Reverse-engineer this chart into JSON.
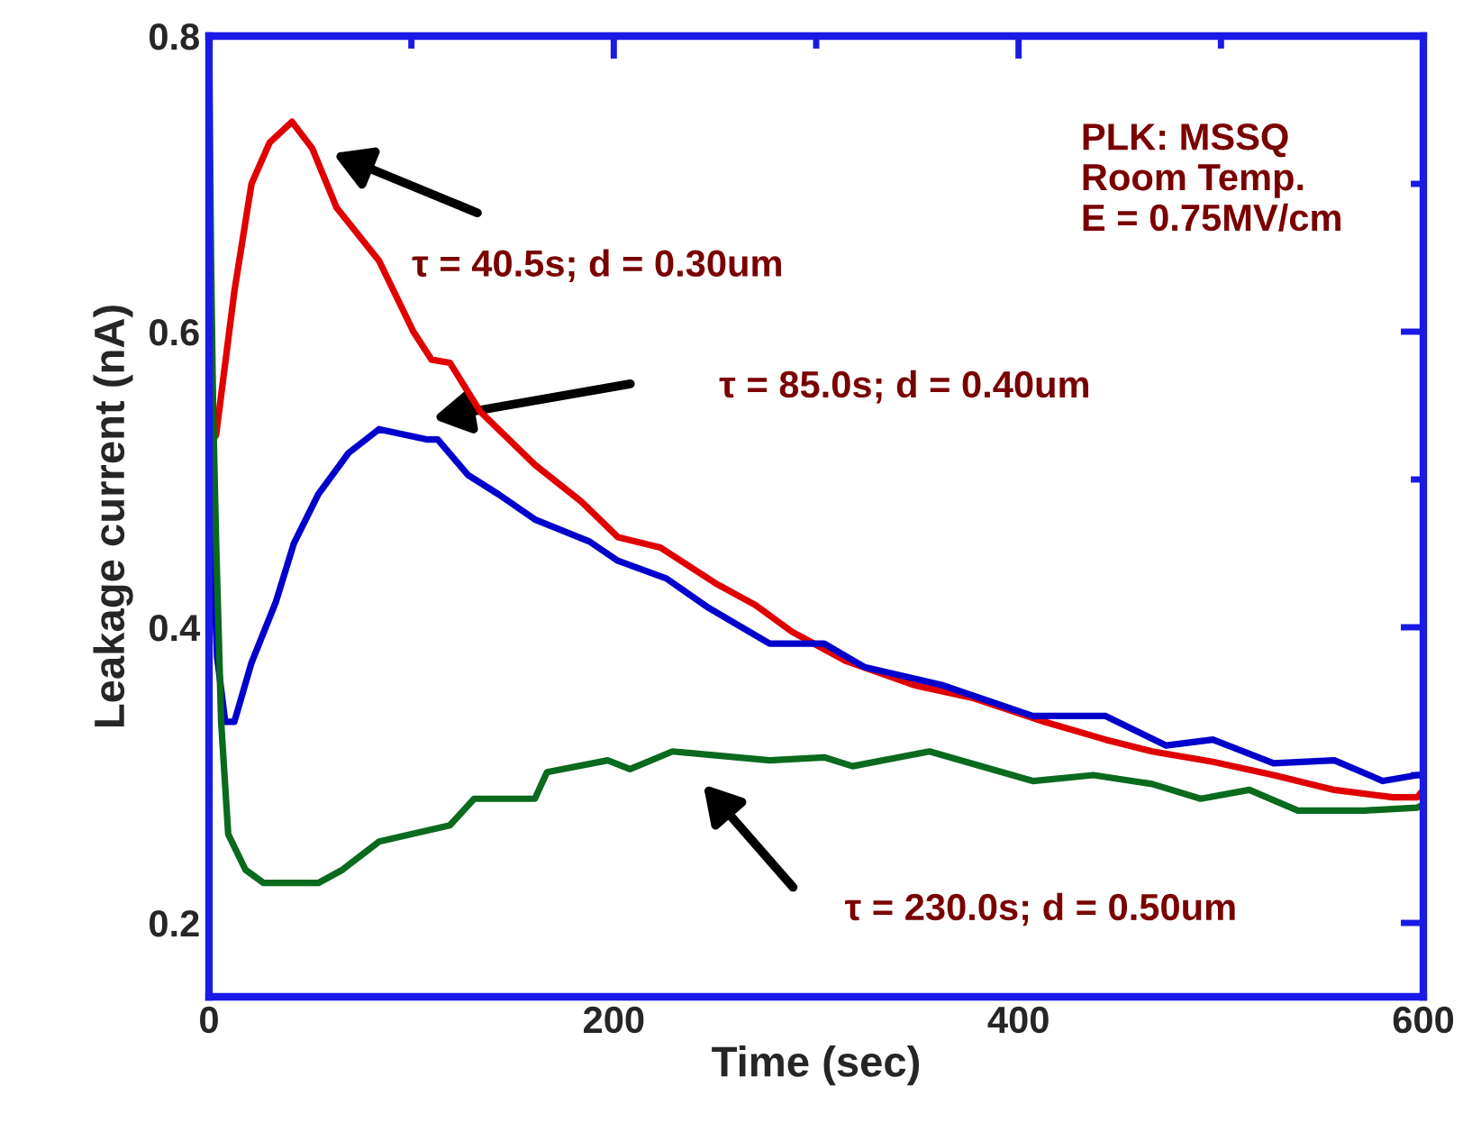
{
  "chart_data": {
    "type": "line",
    "xlabel": "Time (sec)",
    "ylabel": "Leakage current (nA)",
    "xlim": [
      0,
      600
    ],
    "ylim": [
      0.15,
      0.8
    ],
    "xticks": [
      0,
      {
        "value": 100,
        "label": null
      },
      200,
      {
        "value": 300,
        "label": null
      },
      400,
      {
        "value": 500,
        "label": null
      },
      600
    ],
    "yticks": [
      0.2,
      {
        "value": 0.3,
        "label": null
      },
      0.4,
      {
        "value": 0.5,
        "label": null
      },
      0.6,
      {
        "value": 0.7,
        "label": null
      },
      0.8
    ],
    "grid": false,
    "legend": false,
    "marker": "none",
    "line_style": "solid",
    "series": [
      {
        "color": "#e00000",
        "x": [
          1,
          3.5,
          12.5,
          21,
          30,
          41,
          51,
          63,
          84,
          101,
          110,
          119,
          134,
          161,
          184,
          202,
          223,
          250,
          270,
          288,
          315,
          348,
          378,
          413,
          443,
          466,
          496,
          526,
          556,
          585,
          597,
          600
        ],
        "values": [
          0.525,
          0.53,
          0.627,
          0.7,
          0.728,
          0.742,
          0.724,
          0.684,
          0.648,
          0.6,
          0.581,
          0.579,
          0.546,
          0.51,
          0.485,
          0.461,
          0.454,
          0.43,
          0.415,
          0.397,
          0.377,
          0.361,
          0.352,
          0.336,
          0.324,
          0.316,
          0.309,
          0.3,
          0.29,
          0.285,
          0.285,
          0.29
        ]
      },
      {
        "color": "#0000cc",
        "x": [
          0.5,
          4,
          8,
          12.5,
          21,
          33,
          42,
          54,
          69,
          84,
          108,
          113,
          128,
          143,
          161,
          188,
          202,
          226,
          247,
          277,
          288,
          304,
          324,
          362,
          407,
          443,
          473,
          496,
          526,
          556,
          580,
          597,
          600
        ],
        "values": [
          0.5,
          0.38,
          0.336,
          0.336,
          0.376,
          0.417,
          0.457,
          0.49,
          0.518,
          0.534,
          0.527,
          0.527,
          0.503,
          0.49,
          0.473,
          0.458,
          0.445,
          0.433,
          0.413,
          0.389,
          0.389,
          0.389,
          0.373,
          0.361,
          0.34,
          0.34,
          0.32,
          0.324,
          0.308,
          0.31,
          0.296,
          0.3,
          0.3
        ]
      },
      {
        "color": "#0a6a1e",
        "x": [
          0,
          1,
          2,
          3.5,
          6,
          9.5,
          18,
          27,
          54,
          66,
          84,
          119,
          131,
          161,
          167,
          197,
          208,
          229,
          277,
          304,
          318,
          356,
          407,
          437,
          466,
          490,
          514,
          538,
          571,
          597,
          600
        ],
        "values": [
          0.8,
          0.65,
          0.55,
          0.458,
          0.336,
          0.26,
          0.236,
          0.227,
          0.227,
          0.236,
          0.255,
          0.266,
          0.284,
          0.284,
          0.302,
          0.31,
          0.304,
          0.316,
          0.31,
          0.312,
          0.306,
          0.316,
          0.296,
          0.3,
          0.294,
          0.284,
          0.29,
          0.276,
          0.276,
          0.278,
          0.28
        ]
      }
    ],
    "annotations": [
      "τ = 40.5s; d = 0.30um",
      "τ = 85.0s; d = 0.40um",
      "τ = 230.0s; d = 0.50um",
      "PLK: MSSQ\nRoom Temp.\nE = 0.75MV/cm"
    ]
  }
}
